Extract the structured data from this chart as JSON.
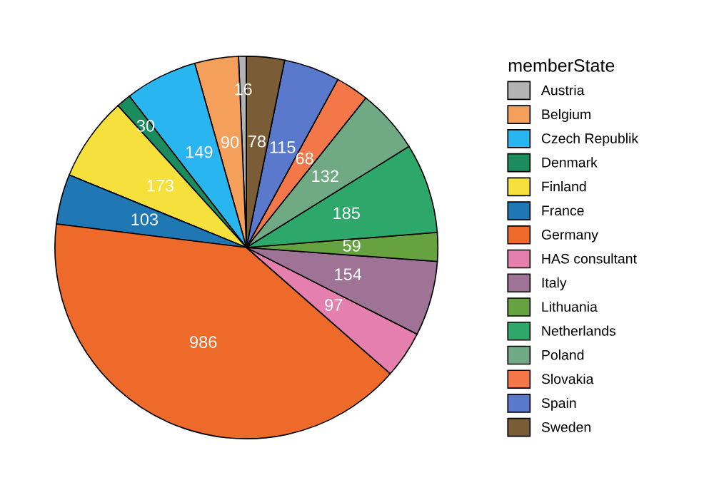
{
  "chart_data": {
    "type": "pie",
    "legend_title": "memberState",
    "legend": "right",
    "data_labels": true,
    "categories": [
      "Austria",
      "Belgium",
      "Czech Republik",
      "Denmark",
      "Finland",
      "France",
      "Germany",
      "HAS consultant",
      "Italy",
      "Lithuania",
      "Netherlands",
      "Poland",
      "Slovakia",
      "Spain",
      "Sweden"
    ],
    "values": [
      16,
      90,
      149,
      30,
      173,
      103,
      986,
      97,
      154,
      59,
      185,
      132,
      68,
      115,
      78
    ],
    "colors": [
      "#b3b3b3",
      "#f5a05a",
      "#29b5f0",
      "#1a8c5e",
      "#f5e03c",
      "#1f78b4",
      "#ee6a2a",
      "#e57fae",
      "#9e7395",
      "#66a340",
      "#2ea86a",
      "#6faa84",
      "#f4774a",
      "#5a78cc",
      "#7a5c36"
    ]
  }
}
